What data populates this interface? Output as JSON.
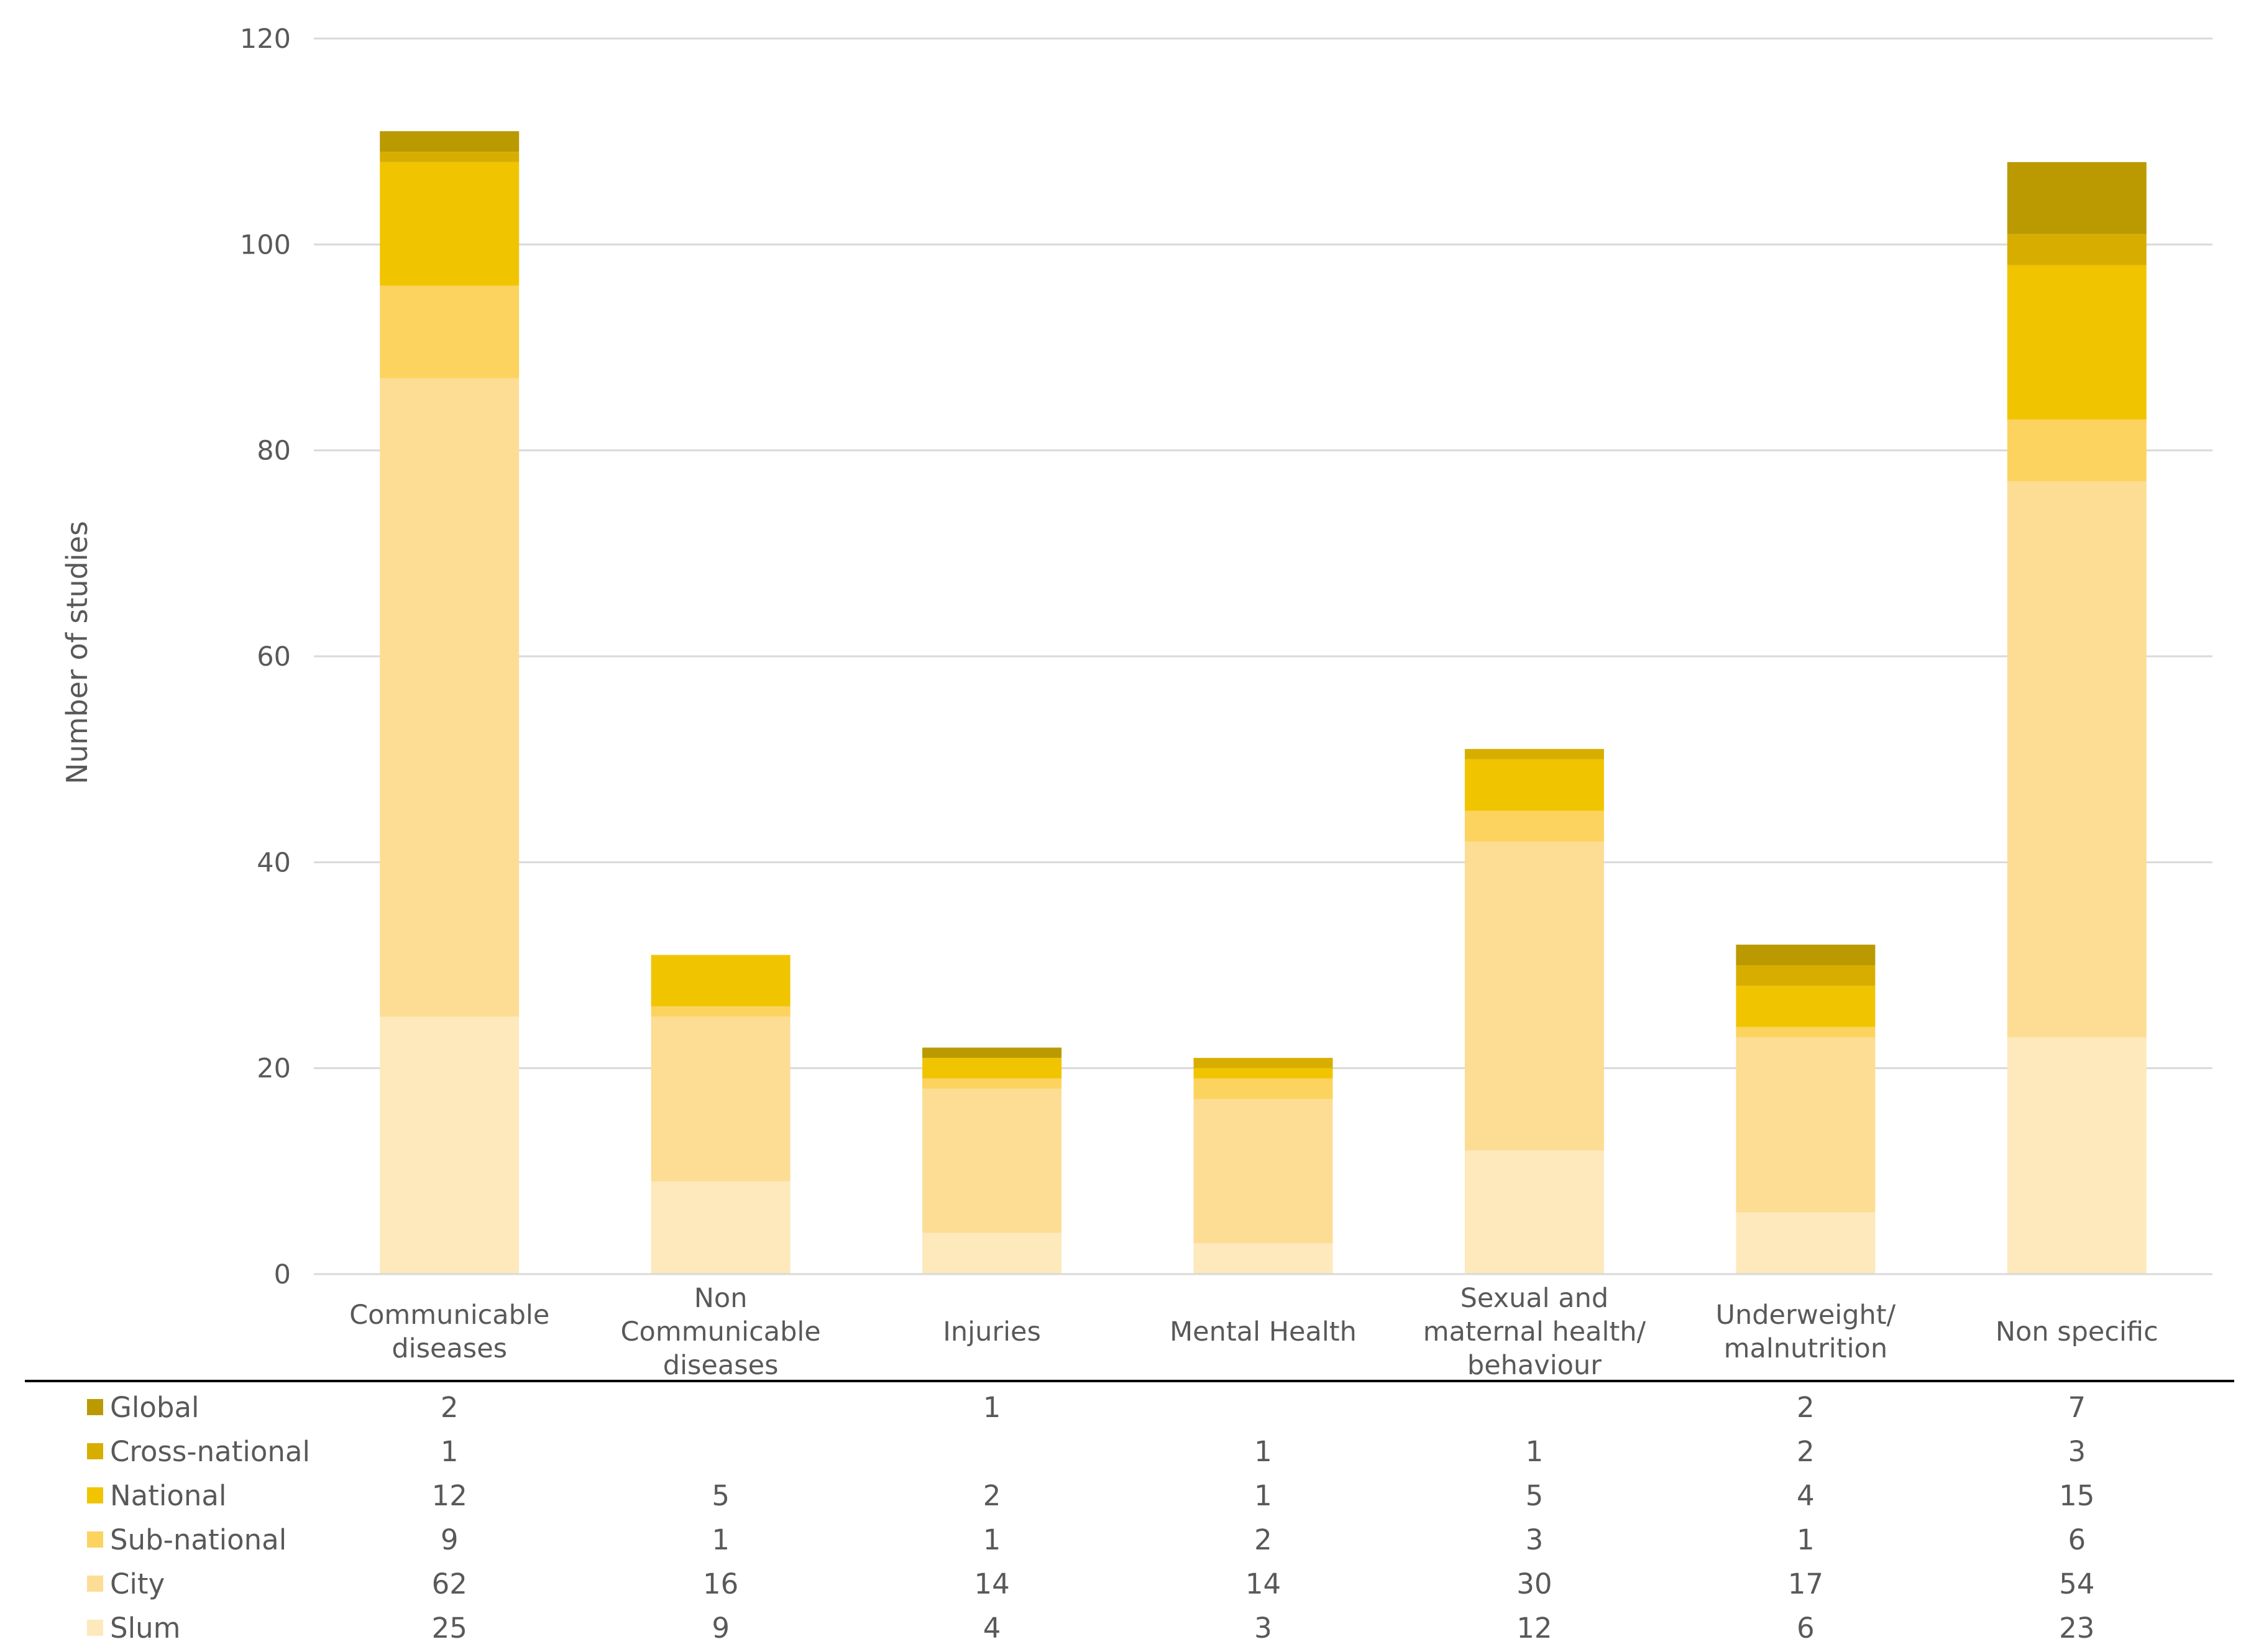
{
  "chart_data": {
    "type": "bar",
    "stacked": true,
    "title": "",
    "xlabel": "",
    "ylabel": "Number of studies",
    "ylim": [
      0,
      120
    ],
    "yticks": [
      0,
      20,
      40,
      60,
      80,
      100,
      120
    ],
    "grid": true,
    "categories": [
      [
        "Communicable",
        "diseases"
      ],
      [
        "Non",
        "Communicable",
        "diseases"
      ],
      [
        "Injuries"
      ],
      [
        "Mental Health"
      ],
      [
        "Sexual and",
        "maternal health/",
        "behaviour"
      ],
      [
        "Underweight/",
        "malnutrition"
      ],
      [
        "Non specific"
      ]
    ],
    "series": [
      {
        "name": "Slum",
        "color": "#FDE9BC",
        "values": [
          25,
          9,
          4,
          3,
          12,
          6,
          23
        ]
      },
      {
        "name": "City",
        "color": "#FDDD94",
        "values": [
          62,
          16,
          14,
          14,
          30,
          17,
          54
        ]
      },
      {
        "name": "Sub-national",
        "color": "#FCD35F",
        "values": [
          9,
          1,
          1,
          2,
          3,
          1,
          6
        ]
      },
      {
        "name": "National",
        "color": "#F1C400",
        "values": [
          12,
          5,
          2,
          1,
          5,
          4,
          15
        ]
      },
      {
        "name": "Cross-national",
        "color": "#D7AE00",
        "values": [
          1,
          null,
          null,
          1,
          1,
          2,
          3
        ]
      },
      {
        "name": "Global",
        "color": "#BA9A00",
        "values": [
          2,
          null,
          1,
          null,
          null,
          2,
          7
        ]
      }
    ],
    "data_table": {
      "row_order": [
        "Global",
        "Cross-national",
        "National",
        "Sub-national",
        "City",
        "Slum"
      ]
    }
  }
}
